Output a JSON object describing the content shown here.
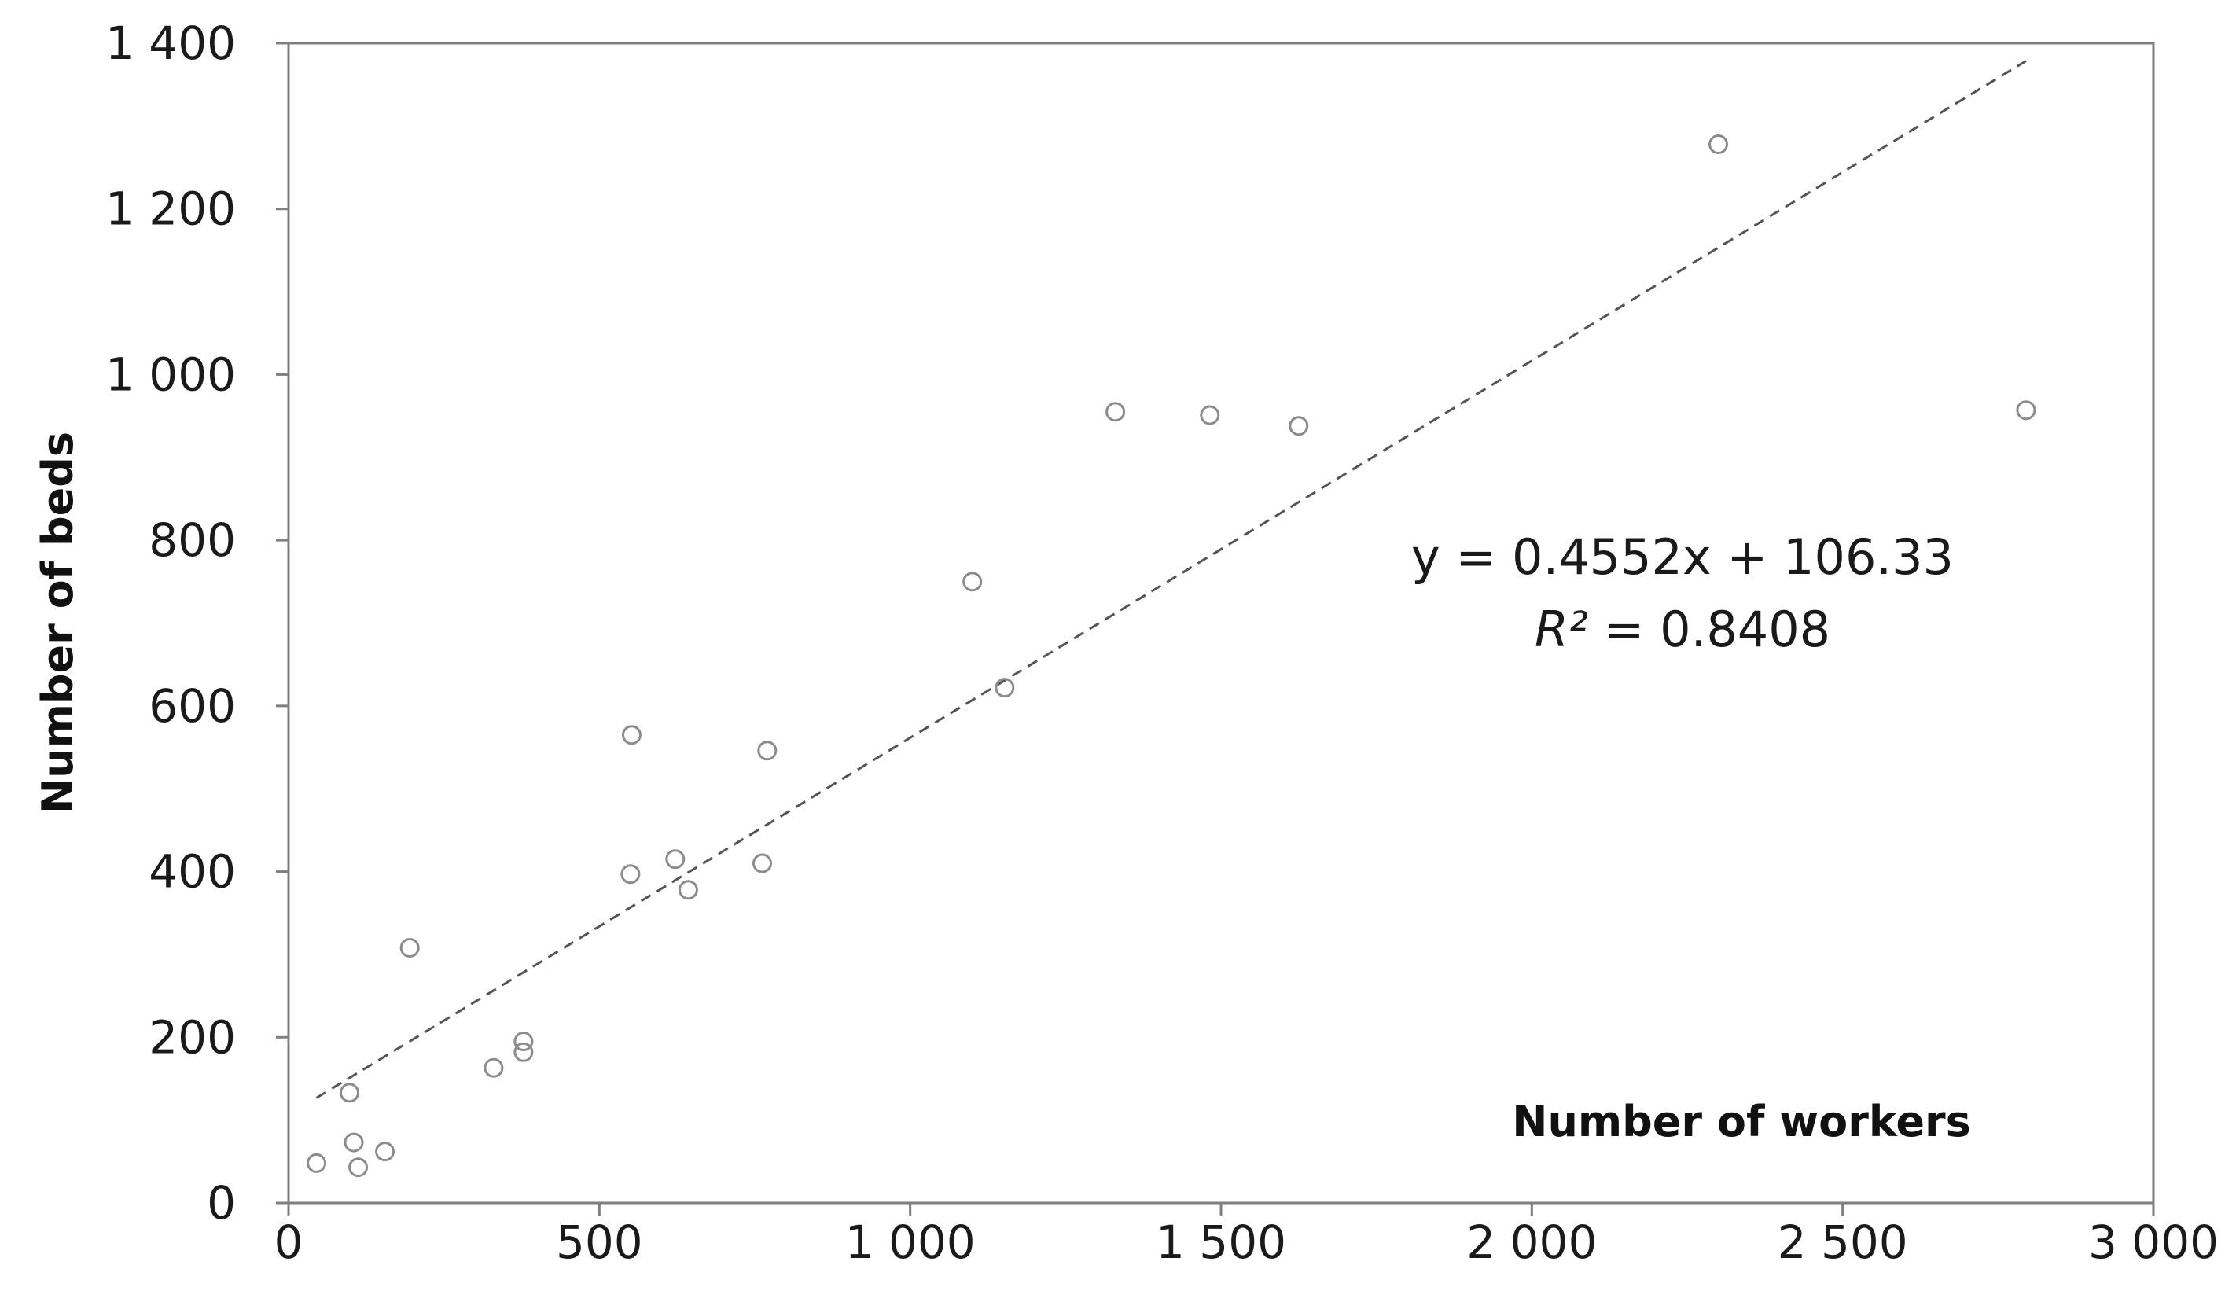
{
  "chart_data": {
    "type": "scatter",
    "title": "",
    "xlabel": "Number of workers",
    "ylabel": "Number of beds",
    "xlim": [
      0,
      3000
    ],
    "ylim": [
      0,
      1400
    ],
    "x_ticks": [
      0,
      500,
      1000,
      1500,
      2000,
      2500,
      3000
    ],
    "x_tick_labels": [
      "0",
      "500",
      "1 000",
      "1 500",
      "2 000",
      "2 500",
      "3 000"
    ],
    "y_ticks": [
      0,
      200,
      400,
      600,
      800,
      1000,
      1200,
      1400
    ],
    "y_tick_labels": [
      "0",
      "200",
      "400",
      "600",
      "800",
      "1 000",
      "1 200",
      "1 400"
    ],
    "grid": false,
    "marker": "open-circle",
    "marker_color": "#8c8c8c",
    "series": [
      {
        "points": [
          {
            "x": 45,
            "y": 48
          },
          {
            "x": 98,
            "y": 133
          },
          {
            "x": 105,
            "y": 73
          },
          {
            "x": 112,
            "y": 43
          },
          {
            "x": 155,
            "y": 62
          },
          {
            "x": 195,
            "y": 308
          },
          {
            "x": 330,
            "y": 163
          },
          {
            "x": 378,
            "y": 195
          },
          {
            "x": 378,
            "y": 182
          },
          {
            "x": 550,
            "y": 397
          },
          {
            "x": 552,
            "y": 565
          },
          {
            "x": 622,
            "y": 415
          },
          {
            "x": 643,
            "y": 378
          },
          {
            "x": 762,
            "y": 410
          },
          {
            "x": 770,
            "y": 546
          },
          {
            "x": 1100,
            "y": 750
          },
          {
            "x": 1152,
            "y": 622
          },
          {
            "x": 1330,
            "y": 955
          },
          {
            "x": 1482,
            "y": 951
          },
          {
            "x": 1625,
            "y": 938
          },
          {
            "x": 2300,
            "y": 1278
          },
          {
            "x": 2795,
            "y": 957
          }
        ]
      }
    ],
    "trendline": {
      "type": "linear",
      "slope": 0.4552,
      "intercept": 106.33,
      "x_range": [
        45,
        2795
      ],
      "style": "dashed",
      "color": "#555555"
    },
    "annotations": {
      "equation": "y = 0.4552x + 106.33",
      "r2_symbol": "R²",
      "r2_value": " = 0.8408"
    }
  }
}
